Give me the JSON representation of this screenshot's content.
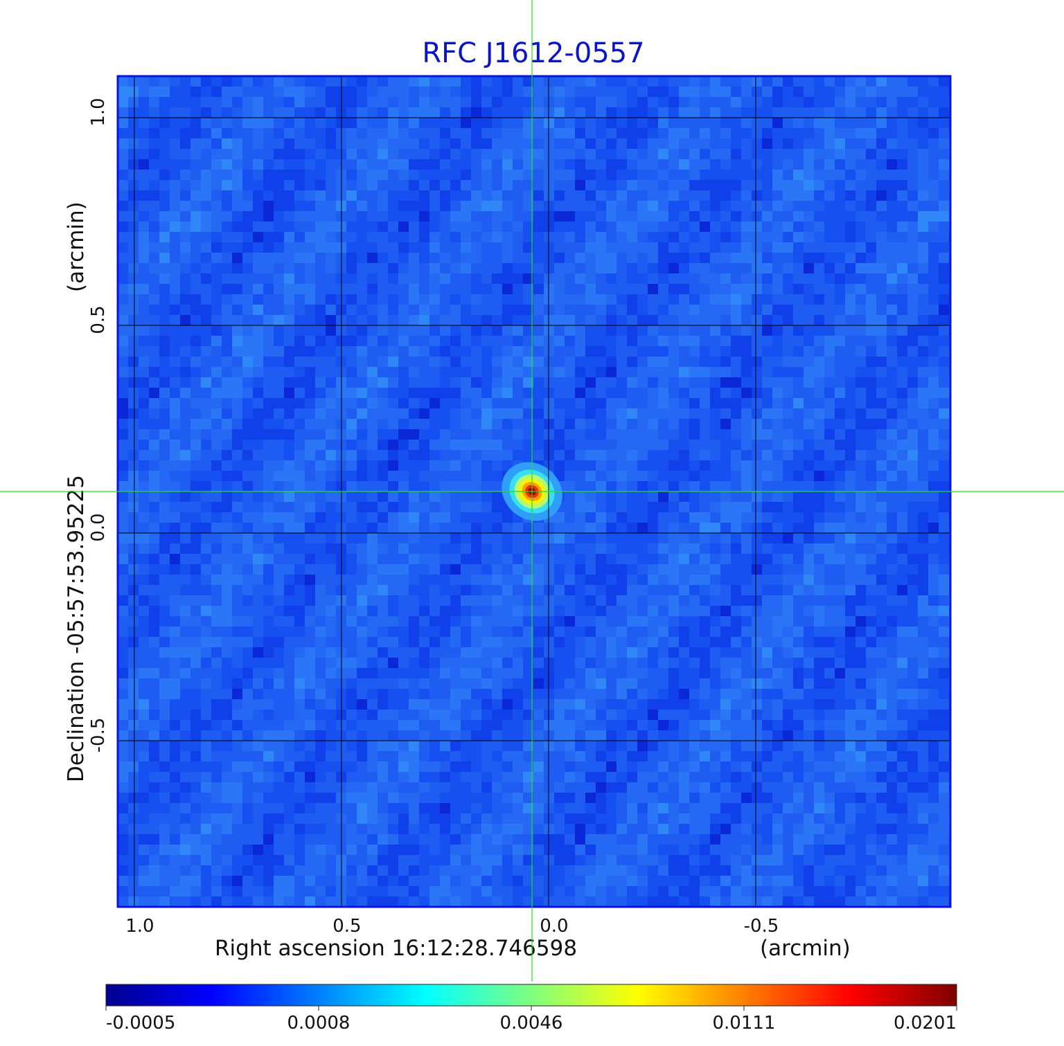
{
  "title": "RFC J1612-0557",
  "colors": {
    "title": "#0a14c8",
    "frame": "#0a14e0",
    "grid": "#000000",
    "crosshair": "#22dd22"
  },
  "chart_data": {
    "type": "heatmap",
    "title": "RFC J1612-0557",
    "x_axis": {
      "label": "Right ascension  16:12:28.746598",
      "unit_label": "(arcmin)",
      "ticks": [
        1.0,
        0.5,
        0.0,
        -0.5
      ],
      "tick_labels": [
        "1.0",
        "0.5",
        "0.0",
        "-0.5"
      ],
      "range": [
        1.04,
        -0.97
      ]
    },
    "y_axis": {
      "label": "Declination  -05:57:53.95225",
      "unit_label": "(arcmin)",
      "ticks": [
        -0.5,
        0.0,
        0.5,
        1.0
      ],
      "tick_labels": [
        "-0.5",
        "0.0",
        "0.5",
        "1.0"
      ],
      "range": [
        -0.9,
        1.1
      ]
    },
    "grid": true,
    "colormap": "jet",
    "colorbar": {
      "ticks": [
        "-0.0005",
        "0.0008",
        "0.0046",
        "0.0111",
        "0.0201"
      ],
      "min": -0.0005,
      "max": 0.0201
    },
    "source": {
      "x": 0.04,
      "y": 0.1,
      "peak": 0.0201
    },
    "crosshair": {
      "x": 0.04,
      "y": 0.1
    }
  }
}
